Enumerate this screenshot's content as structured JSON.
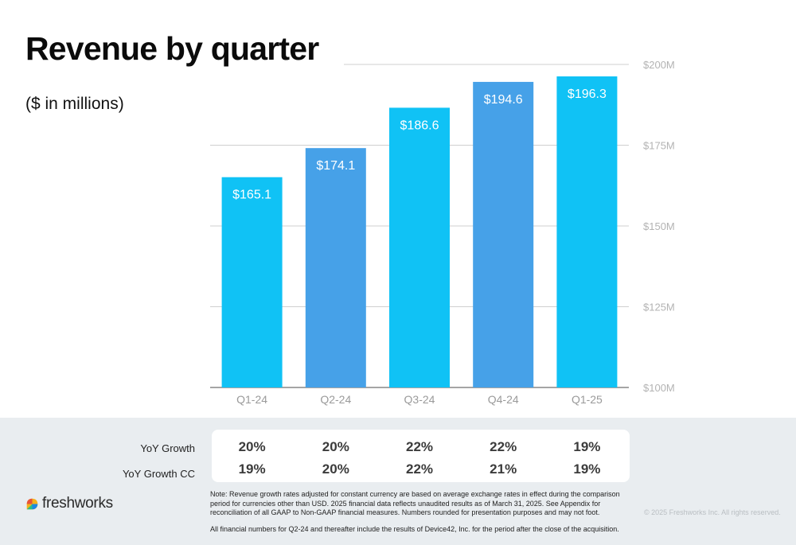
{
  "page": {
    "title": "Revenue by quarter",
    "subtitle": "($ in millions)"
  },
  "chart_data": {
    "type": "bar",
    "categories": [
      "Q1-24",
      "Q2-24",
      "Q3-24",
      "Q4-24",
      "Q1-25"
    ],
    "values": [
      165.1,
      174.1,
      186.6,
      194.6,
      196.3
    ],
    "value_labels": [
      "$165.1",
      "$174.1",
      "$186.6",
      "$194.6",
      "$196.3"
    ],
    "bar_colors": [
      "#10c2f5",
      "#46a1e8",
      "#10c2f5",
      "#46a1e8",
      "#10c2f5"
    ],
    "ylim": [
      100,
      200
    ],
    "yticks": [
      100,
      125,
      150,
      175,
      200
    ],
    "ytick_labels": [
      "$100M",
      "$125M",
      "$150M",
      "$175M",
      "$200M"
    ],
    "y_axis_side": "right",
    "grid": true
  },
  "growth": {
    "rows": [
      {
        "label": "YoY Growth",
        "values": [
          "20%",
          "20%",
          "22%",
          "22%",
          "19%"
        ]
      },
      {
        "label": "YoY Growth CC",
        "values": [
          "19%",
          "20%",
          "22%",
          "21%",
          "19%"
        ]
      }
    ]
  },
  "footer": {
    "logo_text": "freshworks",
    "note": "Note: Revenue growth rates adjusted for constant currency are based on average exchange rates in effect during the comparison period for currencies other than USD. 2025 financial data reflects unaudited results as of March 31, 2025. See Appendix for reconciliation of all GAAP to Non-GAAP financial measures. Numbers rounded for presentation purposes and may not foot.",
    "note2": "All financial numbers for Q2-24 and thereafter include the results of Device42, Inc. for the period after the close of the acquisition.",
    "copyright": "© 2025 Freshworks Inc. All rights reserved."
  }
}
